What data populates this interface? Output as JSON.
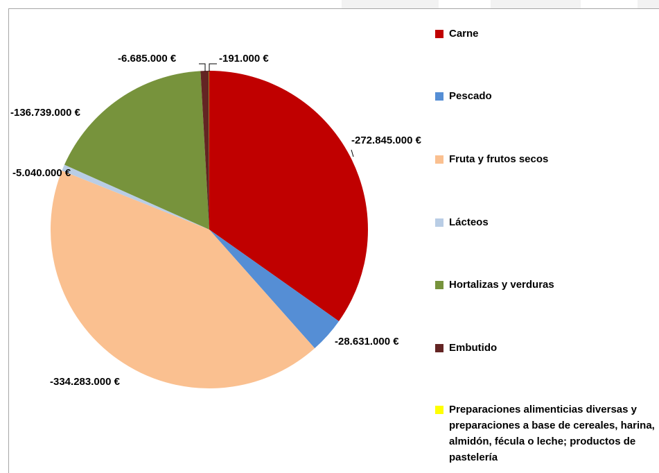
{
  "chart_data": {
    "type": "pie",
    "categories": [
      "Carne",
      "Pescado",
      "Fruta y frutos secos",
      "Lácteos",
      "Hortalizas y verduras",
      "Embutido",
      "Preparaciones alimenticias diversas y preparaciones a base de cereales, harina, almidón, fécula o leche; productos de pastelería"
    ],
    "values": [
      -272845000,
      -28631000,
      -334283000,
      -5040000,
      -136739000,
      -6685000,
      -191000
    ],
    "value_labels": [
      "-272.845.000 €",
      "-28.631.000 €",
      "-334.283.000 €",
      "-5.040.000 €",
      "-136.739.000 €",
      "-6.685.000 €",
      "-191.000 €"
    ],
    "colors": [
      "#c00000",
      "#558ed5",
      "#fac090",
      "#b9cde5",
      "#77933c",
      "#632423",
      "#ffff00"
    ],
    "legend": "right"
  }
}
